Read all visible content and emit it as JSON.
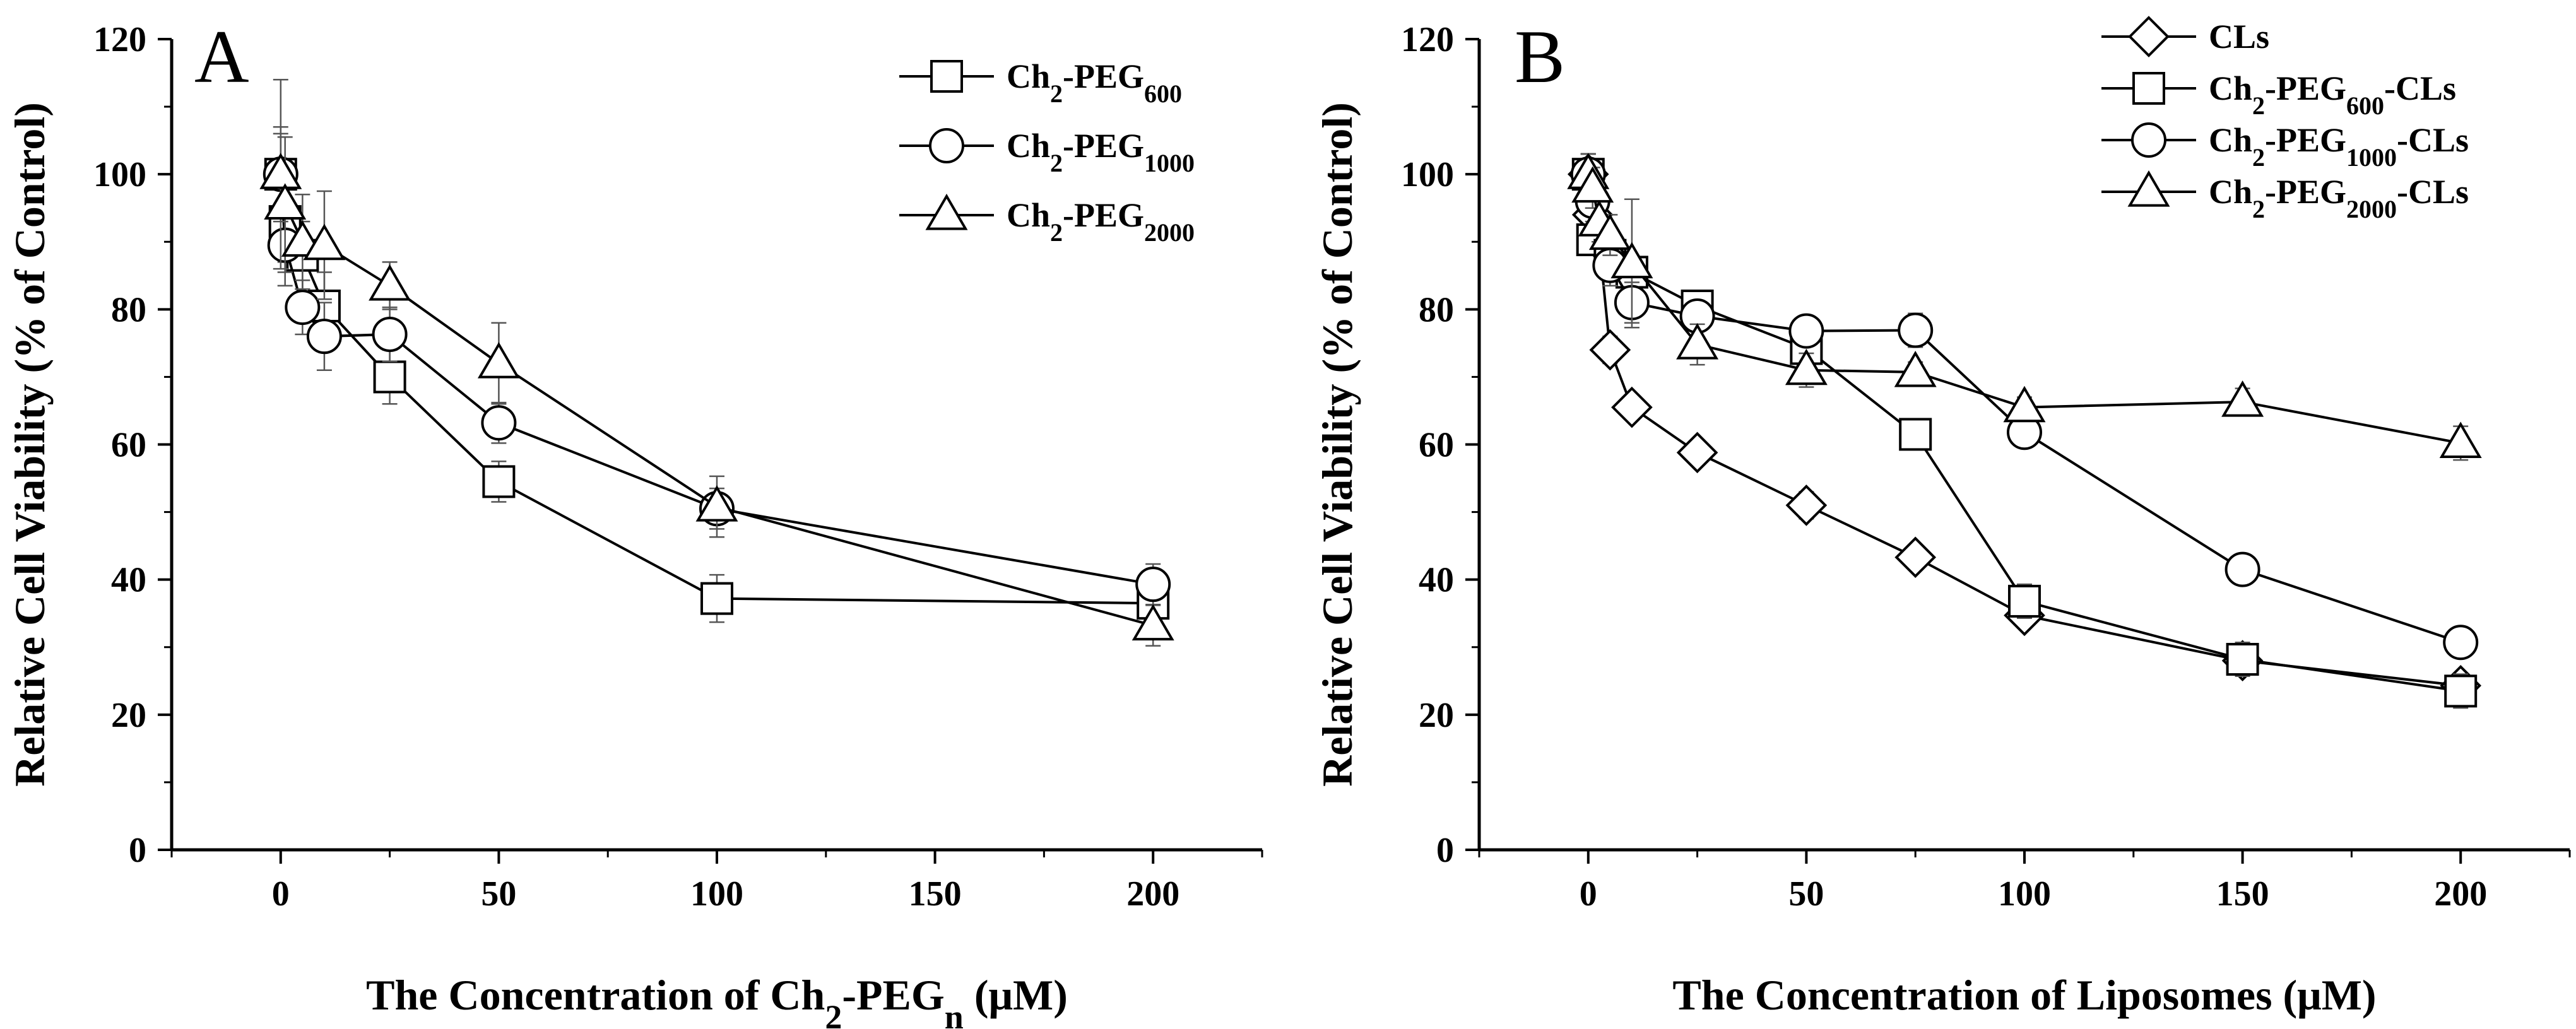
{
  "chart_data": [
    {
      "type": "line",
      "panel_label": "A",
      "xlabel": "The Concentration of Ch2-PEGn (μM)",
      "xlabel_parts": [
        "The Concentration of Ch",
        "2",
        "-PEG",
        "n",
        " (μM)"
      ],
      "ylabel": "Relative Cell Viability (% of Control)",
      "xlim": [
        -25,
        225
      ],
      "ylim": [
        0,
        120
      ],
      "x_ticks": [
        0,
        50,
        100,
        150,
        200
      ],
      "y_ticks": [
        0,
        20,
        40,
        60,
        80,
        100,
        120
      ],
      "x_tick_labels": [
        "0",
        "50",
        "100",
        "150",
        "200"
      ],
      "y_tick_labels": [
        "0",
        "20",
        "40",
        "60",
        "80",
        "100",
        "120"
      ],
      "legend_position": "top-right",
      "series": [
        {
          "name": "Ch2-PEG600",
          "legend_parts": [
            "Ch",
            "2",
            "-PEG",
            "600"
          ],
          "marker": "square",
          "x": [
            0,
            1,
            5,
            10,
            25,
            50,
            100,
            200
          ],
          "values": [
            100,
            93,
            88,
            80.5,
            70,
            54.5,
            37.2,
            36.5
          ],
          "errors": [
            6,
            6,
            5,
            5,
            4,
            3,
            3.5,
            3
          ]
        },
        {
          "name": "Ch2-PEG1000",
          "legend_parts": [
            "Ch",
            "2",
            "-PEG",
            "1000"
          ],
          "marker": "circle",
          "x": [
            0,
            1,
            5,
            10,
            25,
            50,
            100,
            200
          ],
          "values": [
            100,
            89.5,
            80.3,
            76,
            76.3,
            63.2,
            50.5,
            39.3
          ],
          "errors": [
            7,
            6,
            4,
            5,
            4,
            3,
            3,
            3
          ]
        },
        {
          "name": "Ch2-PEG2000",
          "legend_parts": [
            "Ch",
            "2",
            "-PEG",
            "2000"
          ],
          "marker": "triangle",
          "x": [
            0,
            1,
            5,
            10,
            25,
            50,
            100,
            200
          ],
          "values": [
            100,
            95.5,
            90,
            89.5,
            83.5,
            72,
            50.8,
            33.2
          ],
          "errors": [
            14,
            10,
            7,
            8,
            3.5,
            6,
            4.5,
            3
          ]
        }
      ]
    },
    {
      "type": "line",
      "panel_label": "B",
      "xlabel": "The Concentration of Liposomes (μM)",
      "xlabel_parts": [
        "The Concentration of Liposomes",
        "",
        "",
        "",
        " (μM)"
      ],
      "ylabel": "Relative Cell Viability (% of Control)",
      "xlim": [
        -25,
        225
      ],
      "ylim": [
        0,
        120
      ],
      "x_ticks": [
        0,
        50,
        100,
        150,
        200
      ],
      "y_ticks": [
        0,
        20,
        40,
        60,
        80,
        100,
        120
      ],
      "x_tick_labels": [
        "0",
        "50",
        "100",
        "150",
        "200"
      ],
      "y_tick_labels": [
        "0",
        "20",
        "40",
        "60",
        "80",
        "100",
        "120"
      ],
      "legend_position": "top-right",
      "series": [
        {
          "name": "CLs",
          "legend_parts": [
            "CLs",
            "",
            "",
            ""
          ],
          "marker": "diamond",
          "x": [
            0,
            1,
            2.5,
            5,
            10,
            25,
            50,
            75,
            100,
            150,
            200
          ],
          "values": [
            100,
            94,
            90,
            74,
            65.5,
            58.8,
            51,
            43.3,
            34.7,
            28,
            24.3
          ],
          "errors": [
            3,
            2,
            2,
            2,
            1.5,
            1.5,
            2,
            1.5,
            1.5,
            2,
            1.5
          ]
        },
        {
          "name": "Ch2-PEG600-CLs",
          "legend_parts": [
            "Ch",
            "2",
            "-PEG",
            "600",
            "-CLs"
          ],
          "marker": "square",
          "x": [
            0,
            1,
            5,
            10,
            25,
            50,
            75,
            100,
            150,
            200
          ],
          "values": [
            100,
            90.3,
            88,
            85.5,
            80.5,
            74.2,
            61.5,
            36.8,
            28.2,
            23.5
          ],
          "errors": [
            3,
            2,
            2,
            2,
            1.5,
            2,
            1.5,
            2.5,
            2.5,
            2.5
          ]
        },
        {
          "name": "Ch2-PEG1000-CLs",
          "legend_parts": [
            "Ch",
            "2",
            "-PEG",
            "1000",
            "-CLs"
          ],
          "marker": "circle",
          "x": [
            0,
            1,
            5,
            10,
            25,
            50,
            75,
            100,
            150,
            200
          ],
          "values": [
            100,
            96,
            86.5,
            81,
            79,
            76.8,
            76.9,
            61.8,
            41.5,
            30.7
          ],
          "errors": [
            3,
            3,
            3,
            3,
            2,
            2,
            2.5,
            1.5,
            1.5,
            1
          ]
        },
        {
          "name": "Ch2-PEG2000-CLs",
          "legend_parts": [
            "Ch",
            "2",
            "-PEG",
            "2000",
            "-CLs"
          ],
          "marker": "triangle",
          "x": [
            0,
            1,
            2.5,
            5,
            10,
            25,
            50,
            75,
            100,
            150,
            200
          ],
          "values": [
            100,
            98,
            93,
            91,
            86.8,
            74.8,
            71,
            70.7,
            65.5,
            66.3,
            60.2
          ],
          "errors": [
            3,
            3,
            3,
            3,
            9.5,
            3,
            2.5,
            1.5,
            1.5,
            2,
            2.5
          ]
        }
      ]
    }
  ]
}
